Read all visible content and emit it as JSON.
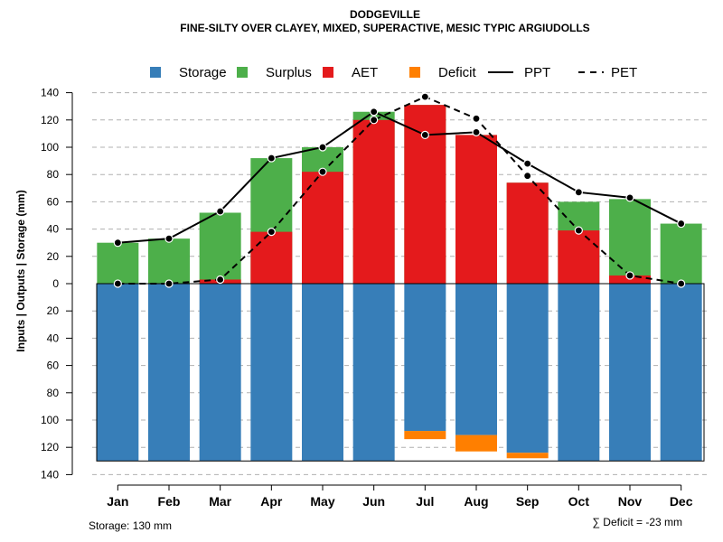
{
  "chart_data": {
    "type": "bar",
    "title": "DODGEVILLE",
    "subtitle": "FINE-SILTY OVER CLAYEY, MIXED, SUPERACTIVE, MESIC TYPIC ARGIUDOLLS",
    "ylabel": "Inputs | Outputs | Storage    (mm)",
    "xlabel": "",
    "ylim": [
      -140,
      140
    ],
    "yticks": [
      140,
      120,
      100,
      80,
      60,
      40,
      20,
      0,
      20,
      40,
      60,
      80,
      100,
      120,
      140
    ],
    "grid": true,
    "legend_position": "top",
    "categories": [
      "Jan",
      "Feb",
      "Mar",
      "Apr",
      "May",
      "Jun",
      "Jul",
      "Aug",
      "Sep",
      "Oct",
      "Nov",
      "Dec"
    ],
    "series": [
      {
        "name": "Storage",
        "kind": "bar",
        "color": "#377EB8",
        "values": [
          -130,
          -130,
          -130,
          -130,
          -130,
          -130,
          -108,
          -111,
          -124,
          -130,
          -130,
          -130
        ]
      },
      {
        "name": "Surplus",
        "kind": "bar",
        "color": "#4DAF4A",
        "values": [
          30,
          33,
          52,
          92,
          100,
          126,
          131,
          109,
          74,
          60,
          62,
          44
        ]
      },
      {
        "name": "AET",
        "kind": "bar",
        "color": "#E41A1C",
        "values": [
          0,
          0,
          3,
          38,
          82,
          120,
          131,
          109,
          74,
          39,
          6,
          0
        ]
      },
      {
        "name": "Deficit",
        "kind": "bar",
        "color": "#FF7F00",
        "values": [
          0,
          0,
          0,
          0,
          0,
          0,
          -6,
          -12,
          -4,
          0,
          0,
          0
        ]
      },
      {
        "name": "PPT",
        "kind": "line",
        "style": "solid",
        "color": "#000000",
        "values": [
          30,
          33,
          53,
          92,
          100,
          126,
          109,
          111,
          88,
          67,
          63,
          44
        ]
      },
      {
        "name": "PET",
        "kind": "line",
        "style": "dashed",
        "color": "#000000",
        "values": [
          0,
          0,
          3,
          38,
          82,
          120,
          137,
          121,
          79,
          39,
          6,
          0
        ]
      }
    ],
    "annotations": {
      "storage_note": "Storage: 130 mm",
      "deficit_note": "∑ Deficit = -23 mm"
    }
  }
}
